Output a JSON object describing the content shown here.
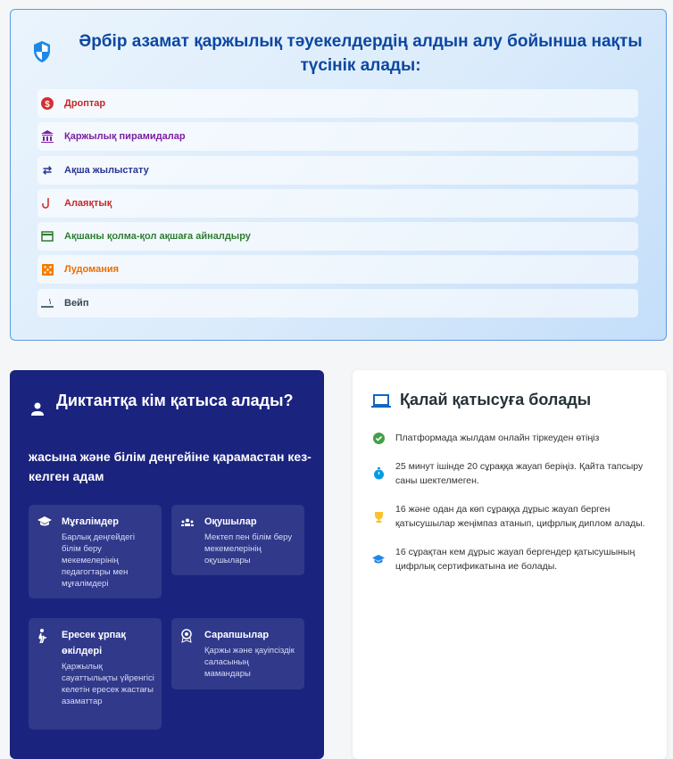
{
  "risks": {
    "title": "Әрбір азамат қаржылық тәуекелдердің алдын алу бойынша нақты түсінік алады:",
    "items": [
      {
        "label": "Дроптар",
        "icon": "dollar-circle-icon",
        "color": "#c62828"
      },
      {
        "label": "Қаржылық пирамидалар",
        "icon": "bank-icon",
        "color": "#7b1fa2"
      },
      {
        "label": "Ақша жылыстату",
        "icon": "swap-arrows-icon",
        "color": "#283593"
      },
      {
        "label": "Алаяқтық",
        "icon": "fishing-hook-icon",
        "color": "#c62828"
      },
      {
        "label": "Ақшаны қолма-қол ақшаға айналдыру",
        "icon": "credit-card-icon",
        "color": "#2e7d32"
      },
      {
        "label": "Лудомания",
        "icon": "dice-icon",
        "color": "#ef6c00"
      },
      {
        "label": "Вейп",
        "icon": "smoking-icon",
        "color": "#37474f"
      }
    ]
  },
  "who": {
    "title": "Диктантқа кім қатыса алады?",
    "subtitle": "жасына және білім деңгейіне қарамастан кез-келген адам",
    "cards": [
      {
        "title": "Мұғалімдер",
        "text": "Барлық деңгейдегі білім беру мекемелерінің педагогтары мен мұғалімдері",
        "icon": "graduation-cap-icon"
      },
      {
        "title": "Оқушылар",
        "text": "Мектеп пен білім беру мекемелерінің оқушылары",
        "icon": "group-icon"
      },
      {
        "title": "Ересек ұрпақ өкілдері",
        "text": "Қаржылық сауаттылықты үйренгісі келетін ересек жастағы азаматтар",
        "icon": "elderly-icon"
      },
      {
        "title": "Сарапшылар",
        "text": "Қаржы және қауіпсіздік саласының мамандары",
        "icon": "badge-icon"
      }
    ]
  },
  "how": {
    "title": "Қалай қатысуға болады",
    "steps": [
      {
        "text": "Платформада жылдам онлайн тіркеуден өтіңіз",
        "icon": "check-circle-icon",
        "color": "#43a047"
      },
      {
        "text": "25 минут ішінде 20 сұраққа жауап беріңіз. Қайта тапсыру саны шектелмеген.",
        "icon": "stopwatch-icon",
        "color": "#039be5"
      },
      {
        "text": "16 және одан да көп сұраққа дұрыс жауап берген қатысушылар жеңімпаз атанып, цифрлық диплом алады.",
        "icon": "trophy-icon",
        "color": "#fbc02d"
      },
      {
        "text": "16 сұрақтан кем дұрыс жауап бергендер қатысушының цифрлық сертификатына ие болады.",
        "icon": "graduation-cap-icon",
        "color": "#1e88e5"
      }
    ]
  }
}
